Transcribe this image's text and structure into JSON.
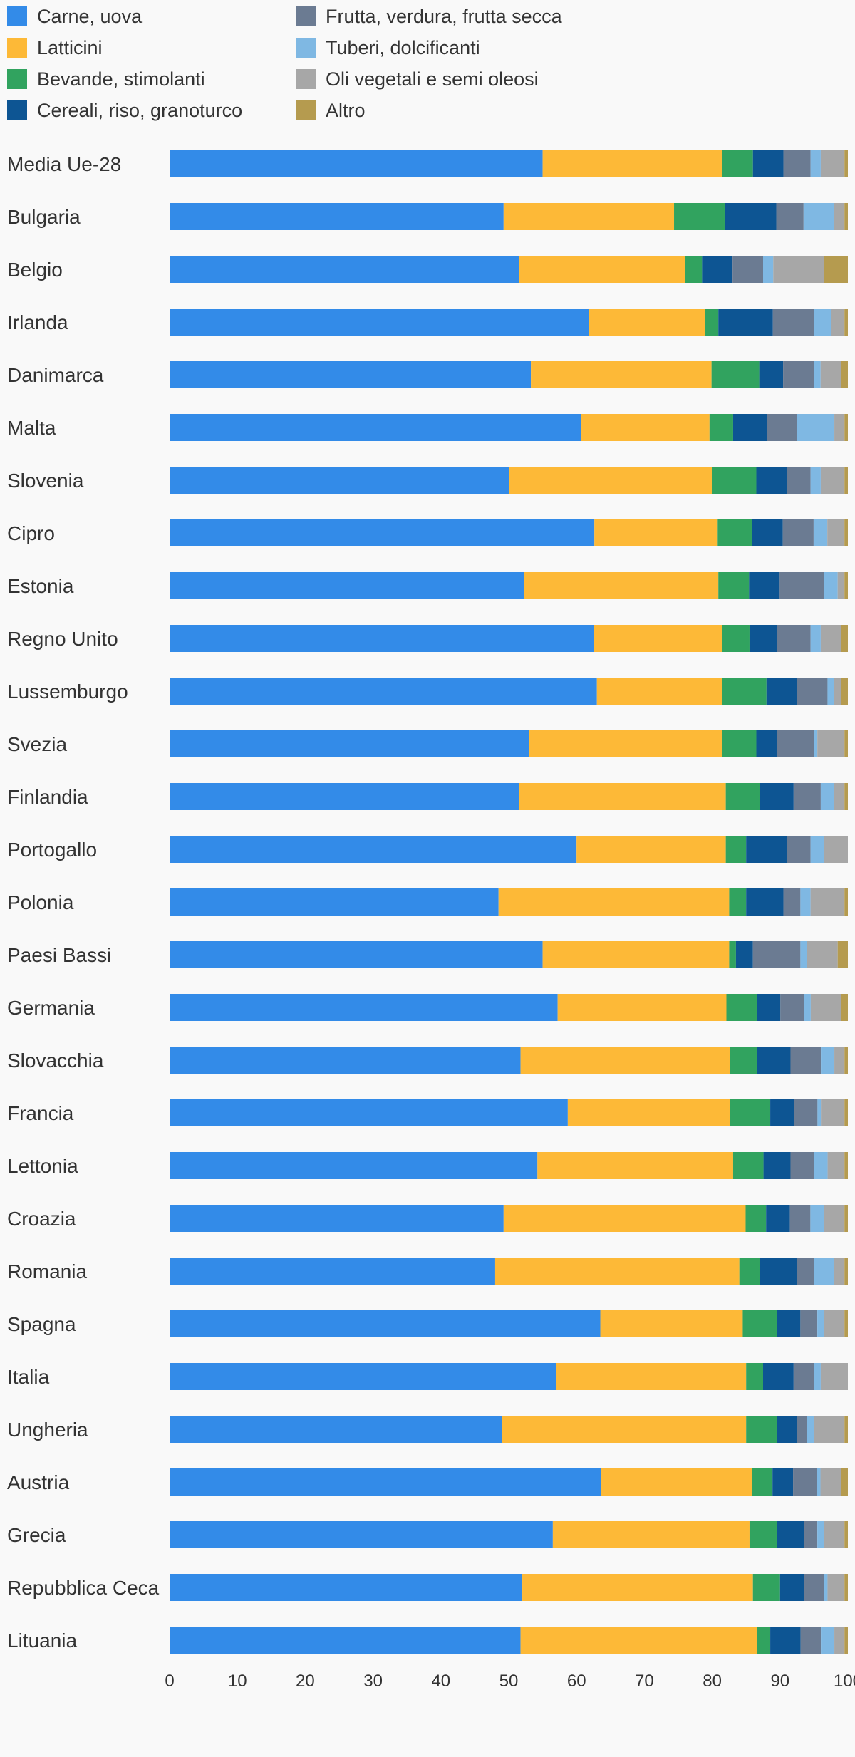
{
  "chart_data": {
    "type": "bar",
    "orientation": "horizontal",
    "stacked": true,
    "title": "",
    "xlabel": "",
    "ylabel": "",
    "xlim": [
      0,
      100
    ],
    "x_ticks": [
      "0",
      "10",
      "20",
      "30",
      "40",
      "50",
      "60",
      "70",
      "80",
      "90",
      "100"
    ],
    "grid": false,
    "legend_position": "top-left",
    "categories": [
      "Media Ue-28",
      "Bulgaria",
      "Belgio",
      "Irlanda",
      "Danimarca",
      "Malta",
      "Slovenia",
      "Cipro",
      "Estonia",
      "Regno Unito",
      "Lussemburgo",
      "Svezia",
      "Finlandia",
      "Portogallo",
      "Polonia",
      "Paesi Bassi",
      "Germania",
      "Slovacchia",
      "Francia",
      "Lettonia",
      "Croazia",
      "Romania",
      "Spagna",
      "Italia",
      "Ungheria",
      "Austria",
      "Grecia",
      "Repubblica Ceca",
      "Lituania"
    ],
    "series": [
      {
        "name": "Carne, uova",
        "color": "#338be8",
        "values": [
          55.0,
          49.0,
          51.5,
          61.5,
          53.0,
          61.0,
          50.0,
          62.0,
          52.0,
          62.5,
          63.0,
          53.0,
          51.5,
          60.0,
          48.5,
          55.0,
          57.5,
          52.0,
          59.0,
          54.5,
          49.0,
          48.0,
          63.5,
          57.0,
          49.0,
          63.0,
          56.5,
          52.0,
          52.0
        ]
      },
      {
        "name": "Latticini",
        "color": "#fdb937",
        "values": [
          26.5,
          25.0,
          24.5,
          17.0,
          26.5,
          19.0,
          30.0,
          18.0,
          28.5,
          19.0,
          18.5,
          28.5,
          30.5,
          22.0,
          34.0,
          27.5,
          25.0,
          31.0,
          24.0,
          29.0,
          35.5,
          36.0,
          21.0,
          28.0,
          36.0,
          22.0,
          29.0,
          34.0,
          35.0
        ]
      },
      {
        "name": "Bevande, stimolanti",
        "color": "#31a35f",
        "values": [
          4.5,
          7.5,
          2.5,
          2.0,
          7.0,
          3.5,
          6.5,
          5.0,
          4.5,
          4.0,
          6.5,
          5.0,
          5.0,
          3.0,
          2.5,
          1.0,
          4.5,
          4.0,
          6.0,
          4.5,
          3.0,
          3.0,
          5.0,
          2.5,
          4.5,
          3.0,
          4.0,
          4.0,
          2.0
        ]
      },
      {
        "name": "Cereali, riso, granoturco",
        "color": "#0d5593",
        "values": [
          4.5,
          7.5,
          4.5,
          8.0,
          3.5,
          5.0,
          4.5,
          4.5,
          4.5,
          4.0,
          4.5,
          3.0,
          5.0,
          6.0,
          5.5,
          2.5,
          3.5,
          5.0,
          3.5,
          4.0,
          3.5,
          5.5,
          3.5,
          4.5,
          3.0,
          3.0,
          4.0,
          3.5,
          4.5
        ]
      },
      {
        "name": "Frutta, verdura, frutta secca",
        "color": "#6b7b92",
        "values": [
          4.0,
          4.0,
          4.5,
          6.0,
          4.5,
          4.5,
          3.5,
          4.5,
          6.5,
          5.0,
          4.5,
          5.5,
          4.0,
          3.5,
          2.5,
          7.0,
          3.5,
          4.5,
          3.5,
          3.5,
          3.0,
          2.5,
          2.5,
          3.0,
          1.5,
          3.5,
          2.0,
          3.0,
          3.0
        ]
      },
      {
        "name": "Tuberi, dolcificanti",
        "color": "#7fb8e3",
        "values": [
          1.5,
          4.5,
          1.5,
          2.5,
          1.0,
          5.5,
          1.5,
          2.0,
          2.0,
          1.5,
          1.0,
          0.5,
          2.0,
          2.0,
          1.5,
          1.0,
          1.0,
          2.0,
          0.5,
          2.0,
          2.0,
          3.0,
          1.0,
          1.0,
          1.0,
          0.5,
          1.0,
          0.5,
          2.0
        ]
      },
      {
        "name": "Oli vegetali e semi oleosi",
        "color": "#a7a7a7",
        "values": [
          3.5,
          1.5,
          7.5,
          2.0,
          3.0,
          1.5,
          3.5,
          2.5,
          1.0,
          3.0,
          1.0,
          4.0,
          1.5,
          3.5,
          5.0,
          4.5,
          4.5,
          1.5,
          3.5,
          2.5,
          3.0,
          1.5,
          3.0,
          4.0,
          4.5,
          3.0,
          3.0,
          2.5,
          1.5
        ]
      },
      {
        "name": "Altro",
        "color": "#b59b4f",
        "values": [
          0.5,
          0.5,
          3.5,
          0.5,
          1.0,
          0.5,
          0.5,
          0.5,
          0.5,
          1.0,
          1.0,
          0.5,
          0.5,
          0.0,
          0.5,
          1.5,
          1.0,
          0.5,
          0.5,
          0.5,
          0.5,
          0.5,
          0.5,
          0.0,
          0.5,
          1.0,
          0.5,
          0.5,
          0.5
        ]
      }
    ]
  }
}
